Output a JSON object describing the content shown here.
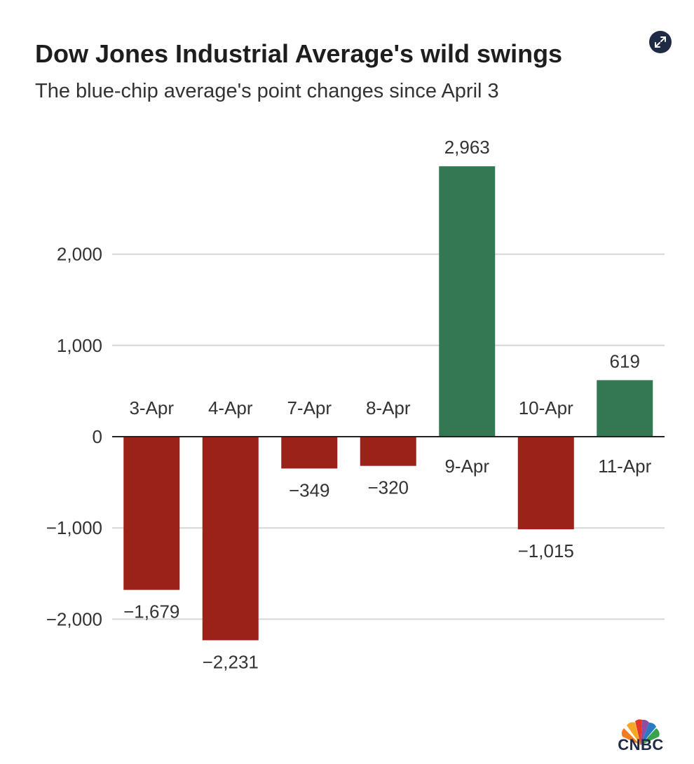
{
  "header": {
    "title": "Dow Jones Industrial Average's wild swings",
    "subtitle": "The blue-chip average's point changes since April 3",
    "expand_icon": "expand-icon"
  },
  "branding": {
    "logo_text": "CNBC",
    "logo_icon": "peacock-icon"
  },
  "colors": {
    "negative": "#9b2218",
    "positive": "#327852",
    "grid": "#d6d6d6",
    "axis": "#222222"
  },
  "chart_data": {
    "type": "bar",
    "title": "Dow Jones Industrial Average's wild swings",
    "subtitle": "The blue-chip average's point changes since April 3",
    "categories": [
      "3-Apr",
      "4-Apr",
      "7-Apr",
      "8-Apr",
      "9-Apr",
      "10-Apr",
      "11-Apr"
    ],
    "values": [
      -1679,
      -2231,
      -349,
      -320,
      2963,
      -1015,
      619
    ],
    "value_labels": [
      "−1,679",
      "−2,231",
      "−349",
      "−320",
      "2,963",
      "−1,015",
      "619"
    ],
    "yticks": [
      2000,
      1000,
      0,
      -1000,
      -2000
    ],
    "ytick_labels": [
      "2,000",
      "1,000",
      "0",
      "−1,000",
      "−2,000"
    ],
    "ylim": [
      -2500,
      3300
    ],
    "grid": true,
    "legend": "none"
  }
}
